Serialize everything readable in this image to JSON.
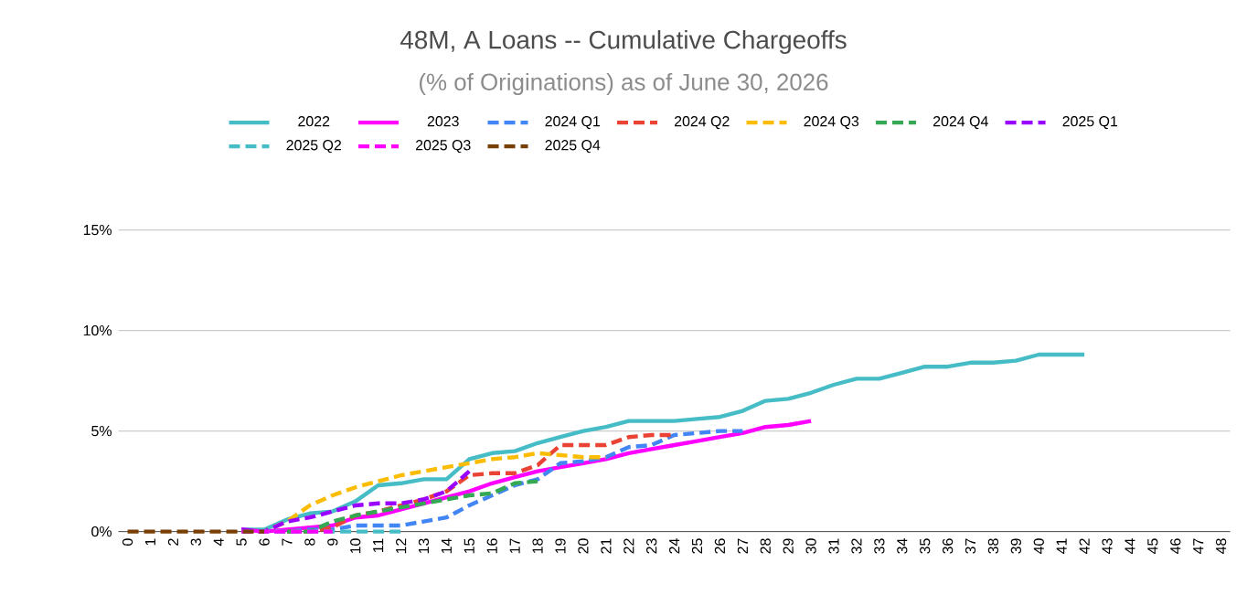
{
  "chart_data": {
    "type": "line",
    "title": "48M, A Loans -- Cumulative Chargeoffs",
    "subtitle": "(% of Originations) as of June 30, 2026",
    "categories": [
      "0",
      "1",
      "2",
      "3",
      "4",
      "5",
      "6",
      "7",
      "8",
      "9",
      "10",
      "11",
      "12",
      "13",
      "14",
      "15",
      "16",
      "17",
      "18",
      "19",
      "20",
      "21",
      "22",
      "23",
      "24",
      "25",
      "26",
      "27",
      "28",
      "29",
      "30",
      "31",
      "32",
      "33",
      "34",
      "35",
      "36",
      "37",
      "38",
      "39",
      "40",
      "41",
      "42",
      "43",
      "44",
      "45",
      "46",
      "47",
      "48"
    ],
    "ylim": [
      0,
      15
    ],
    "yticks": [
      {
        "value": 0,
        "label": "0%"
      },
      {
        "value": 5,
        "label": "5%"
      },
      {
        "value": 10,
        "label": "10%"
      },
      {
        "value": 15,
        "label": "15%"
      }
    ],
    "grid": "y",
    "legend": "top",
    "series": [
      {
        "name": "2022",
        "color": "#46bdc6",
        "line_style": "solid",
        "values": [
          null,
          null,
          null,
          null,
          null,
          0.1,
          0.1,
          0.6,
          0.9,
          1.0,
          1.5,
          2.3,
          2.4,
          2.6,
          2.6,
          3.6,
          3.9,
          4.0,
          4.4,
          4.7,
          5.0,
          5.2,
          5.5,
          5.5,
          5.5,
          5.6,
          5.7,
          6.0,
          6.5,
          6.6,
          6.9,
          7.3,
          7.6,
          7.6,
          7.9,
          8.2,
          8.2,
          8.4,
          8.4,
          8.5,
          8.8,
          8.8,
          8.8,
          null,
          null,
          null,
          null,
          null,
          null
        ]
      },
      {
        "name": "2023",
        "color": "#ff00ff",
        "line_style": "solid",
        "values": [
          null,
          null,
          null,
          null,
          null,
          0.1,
          0,
          0.1,
          0.2,
          0.3,
          0.7,
          0.8,
          1.1,
          1.4,
          1.7,
          2.0,
          2.4,
          2.7,
          3.0,
          3.2,
          3.4,
          3.6,
          3.9,
          4.1,
          4.3,
          4.5,
          4.7,
          4.9,
          5.2,
          5.3,
          5.5,
          null,
          null,
          null,
          null,
          null,
          null,
          null,
          null,
          null,
          null,
          null,
          null,
          null,
          null,
          null,
          null,
          null,
          null
        ]
      },
      {
        "name": "2024 Q1",
        "color": "#4285f4",
        "line_style": "dashed",
        "values": [
          null,
          null,
          null,
          null,
          null,
          0,
          0,
          0,
          0.1,
          0.1,
          0.3,
          0.3,
          0.3,
          0.5,
          0.7,
          1.3,
          1.8,
          2.3,
          2.6,
          3.4,
          3.5,
          3.7,
          4.2,
          4.3,
          4.8,
          4.9,
          5.0,
          5.0,
          null,
          null,
          null,
          null,
          null,
          null,
          null,
          null,
          null,
          null,
          null,
          null,
          null,
          null,
          null,
          null,
          null,
          null,
          null,
          null,
          null
        ]
      },
      {
        "name": "2024 Q2",
        "color": "#ea4335",
        "line_style": "dashed",
        "values": [
          null,
          null,
          null,
          null,
          null,
          null,
          null,
          0,
          0,
          0.2,
          0.8,
          1.0,
          1.3,
          1.6,
          2.0,
          2.8,
          2.9,
          2.9,
          3.3,
          4.3,
          4.3,
          4.3,
          4.7,
          4.8,
          4.8,
          null,
          null,
          null,
          null,
          null,
          null,
          null,
          null,
          null,
          null,
          null,
          null,
          null,
          null,
          null,
          null,
          null,
          null,
          null,
          null,
          null,
          null,
          null,
          null
        ]
      },
      {
        "name": "2024 Q3",
        "color": "#fbbc04",
        "line_style": "dashed",
        "values": [
          null,
          null,
          null,
          null,
          null,
          0,
          0,
          0.5,
          1.3,
          1.8,
          2.2,
          2.5,
          2.8,
          3.0,
          3.2,
          3.4,
          3.6,
          3.7,
          3.9,
          3.8,
          3.7,
          3.7,
          null,
          null,
          null,
          null,
          null,
          null,
          null,
          null,
          null,
          null,
          null,
          null,
          null,
          null,
          null,
          null,
          null,
          null,
          null,
          null,
          null,
          null,
          null,
          null,
          null,
          null,
          null
        ]
      },
      {
        "name": "2024 Q4",
        "color": "#34a853",
        "line_style": "dashed",
        "values": [
          null,
          null,
          null,
          null,
          null,
          null,
          null,
          0,
          0,
          0.5,
          0.8,
          1.0,
          1.2,
          1.4,
          1.6,
          1.8,
          1.9,
          2.4,
          2.5,
          null,
          null,
          null,
          null,
          null,
          null,
          null,
          null,
          null,
          null,
          null,
          null,
          null,
          null,
          null,
          null,
          null,
          null,
          null,
          null,
          null,
          null,
          null,
          null,
          null,
          null,
          null,
          null,
          null,
          null
        ]
      },
      {
        "name": "2025 Q1",
        "color": "#9900ff",
        "line_style": "dashed",
        "values": [
          null,
          null,
          null,
          null,
          null,
          0.1,
          0,
          0.5,
          0.7,
          1.0,
          1.3,
          1.4,
          1.4,
          1.6,
          2.0,
          3.0,
          null,
          null,
          null,
          null,
          null,
          null,
          null,
          null,
          null,
          null,
          null,
          null,
          null,
          null,
          null,
          null,
          null,
          null,
          null,
          null,
          null,
          null,
          null,
          null,
          null,
          null,
          null,
          null,
          null,
          null,
          null,
          null,
          null
        ]
      },
      {
        "name": "2025 Q2",
        "color": "#46bdc6",
        "line_style": "dashed",
        "values": [
          null,
          null,
          null,
          null,
          null,
          0,
          0,
          0,
          0,
          0,
          0,
          0,
          0,
          null,
          null,
          null,
          null,
          null,
          null,
          null,
          null,
          null,
          null,
          null,
          null,
          null,
          null,
          null,
          null,
          null,
          null,
          null,
          null,
          null,
          null,
          null,
          null,
          null,
          null,
          null,
          null,
          null,
          null,
          null,
          null,
          null,
          null,
          null,
          null
        ]
      },
      {
        "name": "2025 Q3",
        "color": "#ff00ff",
        "line_style": "dashed",
        "values": [
          null,
          null,
          null,
          null,
          null,
          0,
          0,
          0,
          0,
          0,
          null,
          null,
          null,
          null,
          null,
          null,
          null,
          null,
          null,
          null,
          null,
          null,
          null,
          null,
          null,
          null,
          null,
          null,
          null,
          null,
          null,
          null,
          null,
          null,
          null,
          null,
          null,
          null,
          null,
          null,
          null,
          null,
          null,
          null,
          null,
          null,
          null,
          null,
          null
        ]
      },
      {
        "name": "2025 Q4",
        "color": "#783f04",
        "line_style": "dashed",
        "values": [
          0,
          0,
          0,
          0,
          0,
          0,
          0,
          null,
          null,
          null,
          null,
          null,
          null,
          null,
          null,
          null,
          null,
          null,
          null,
          null,
          null,
          null,
          null,
          null,
          null,
          null,
          null,
          null,
          null,
          null,
          null,
          null,
          null,
          null,
          null,
          null,
          null,
          null,
          null,
          null,
          null,
          null,
          null,
          null,
          null,
          null,
          null,
          null,
          null
        ]
      }
    ]
  }
}
